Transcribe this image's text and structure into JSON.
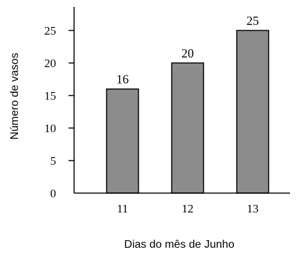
{
  "chart_data": {
    "type": "bar",
    "categories": [
      "11",
      "12",
      "13"
    ],
    "values": [
      16,
      20,
      25
    ],
    "data_labels": [
      "16",
      "20",
      "25"
    ],
    "title": "",
    "xlabel": "Dias do mês de Junho",
    "ylabel": "Número de vasos",
    "ylim": [
      0,
      30
    ],
    "yticks": [
      0,
      5,
      10,
      15,
      20,
      25
    ],
    "grid": false,
    "bar_color": "#8c8c8c",
    "bar_edge_color": "#000000"
  }
}
